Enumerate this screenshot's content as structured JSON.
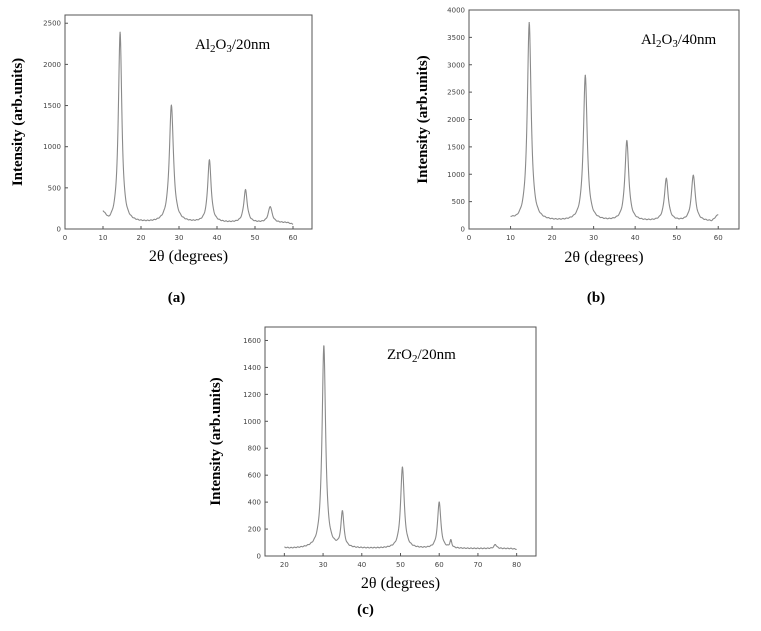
{
  "chart_data": [
    {
      "type": "line",
      "panel_label": "(a)",
      "sample": {
        "pre": "Al",
        "sub1": "2",
        "mid": "O",
        "sub2": "3",
        "post": "/20nm"
      },
      "xlabel": "2θ (degrees)",
      "ylabel": "Intensity (arb.units)",
      "xlim": [
        0,
        65
      ],
      "ylim": [
        0,
        2600
      ],
      "xticks": [
        0,
        10,
        20,
        30,
        40,
        50,
        60
      ],
      "yticks": [
        0,
        500,
        1000,
        1500,
        2000,
        2500
      ],
      "baseline": {
        "start_x": 10,
        "start_y": 190,
        "y": 75,
        "end_x": 60,
        "end_y": 55
      },
      "peaks": [
        {
          "x": 14.5,
          "y": 2390
        },
        {
          "x": 28.0,
          "y": 1500
        },
        {
          "x": 38.0,
          "y": 830
        },
        {
          "x": 47.5,
          "y": 470
        },
        {
          "x": 54.0,
          "y": 270
        }
      ]
    },
    {
      "type": "line",
      "panel_label": "(b)",
      "sample": {
        "pre": "Al",
        "sub1": "2",
        "mid": "O",
        "sub2": "3",
        "post": "/40nm"
      },
      "xlabel": "2θ (degrees)",
      "ylabel": "Intensity (arb.units)",
      "xlim": [
        0,
        65
      ],
      "ylim": [
        0,
        4000
      ],
      "xticks": [
        0,
        10,
        20,
        30,
        40,
        50,
        60
      ],
      "yticks": [
        0,
        500,
        1000,
        1500,
        2000,
        2500,
        3000,
        3500,
        4000
      ],
      "baseline": {
        "start_x": 10,
        "start_y": 180,
        "y": 140,
        "end_x": 60,
        "end_y": 260
      },
      "peaks": [
        {
          "x": 14.5,
          "y": 3770
        },
        {
          "x": 28.0,
          "y": 2800
        },
        {
          "x": 38.0,
          "y": 1600
        },
        {
          "x": 47.5,
          "y": 910
        },
        {
          "x": 54.0,
          "y": 980
        }
      ]
    },
    {
      "type": "line",
      "panel_label": "(c)",
      "sample": {
        "pre": "ZrO",
        "sub1": "2",
        "mid": "",
        "sub2": "",
        "post": "/20nm"
      },
      "xlabel": "2θ (degrees)",
      "ylabel": "Intensity (arb.units)",
      "xlim": [
        15,
        85
      ],
      "ylim": [
        0,
        1700
      ],
      "xticks": [
        20,
        30,
        40,
        50,
        60,
        70,
        80
      ],
      "yticks": [
        0,
        200,
        400,
        600,
        800,
        1000,
        1200,
        1400,
        1600
      ],
      "baseline": {
        "start_x": 20,
        "start_y": 60,
        "y": 55,
        "end_x": 80,
        "end_y": 50
      },
      "peaks": [
        {
          "x": 30.2,
          "y": 1560
        },
        {
          "x": 35.0,
          "y": 320
        },
        {
          "x": 50.5,
          "y": 660
        },
        {
          "x": 60.0,
          "y": 400
        },
        {
          "x": 63.0,
          "y": 110
        },
        {
          "x": 74.5,
          "y": 85
        }
      ]
    }
  ]
}
